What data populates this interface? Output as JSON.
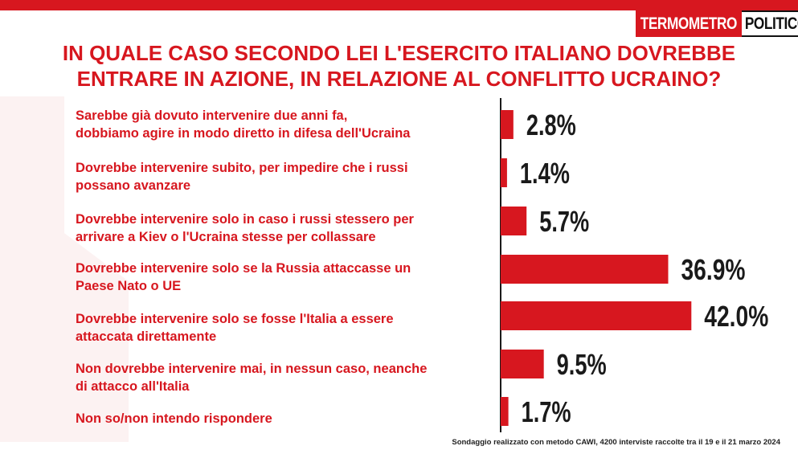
{
  "logo": {
    "part1": "TERMOMETRO",
    "part2": "POLITICO"
  },
  "title_line1": "IN QUALE CASO SECONDO LEI L'ESERCITO ITALIANO DOVREBBE",
  "title_line2": "ENTRARE IN AZIONE, IN RELAZIONE AL CONFLITTO UCRAINO?",
  "labels": [
    [
      "Sarebbe già  dovuto intervenire due anni fa,",
      "dobbiamo agire in modo diretto in difesa dell'Ucraina"
    ],
    [
      "Dovrebbe intervenire subito, per impedire che i russi",
      "possano avanzare"
    ],
    [
      "Dovrebbe intervenire solo in caso i russi stessero per",
      "arrivare a Kiev o l'Ucraina stesse per collassare"
    ],
    [
      "Dovrebbe intervenire solo se la Russia attaccasse un",
      "Paese Nato o UE"
    ],
    [
      "Dovrebbe intervenire solo se fosse l'Italia a essere",
      "attaccata direttamente"
    ],
    [
      "Non dovrebbe intervenire mai, in nessun caso, neanche",
      "di attacco all'Italia"
    ],
    [
      "Non so/non intendo rispondere"
    ]
  ],
  "footnote": "Sondaggio realizzato con metodo CAWI, 4200 interviste raccolte tra il 19 e il 21 marzo 2024",
  "colors": {
    "accent": "#d7171f",
    "text": "#1a1a1a"
  },
  "chart_data": {
    "type": "bar",
    "orientation": "horizontal",
    "categories": [
      "Sarebbe già  dovuto intervenire due anni fa, dobbiamo agire in modo diretto in difesa dell'Ucraina",
      "Dovrebbe intervenire subito, per impedire che i russi possano avanzare",
      "Dovrebbe intervenire solo in caso i russi stessero per arrivare a Kiev o l'Ucraina stesse per collassare",
      "Dovrebbe intervenire solo se la Russia attaccasse un Paese Nato o UE",
      "Dovrebbe intervenire solo se fosse l'Italia a essere attaccata direttamente",
      "Non dovrebbe intervenire mai, in nessun caso, neanche di attacco all'Italia",
      "Non so/non intendo rispondere"
    ],
    "values": [
      2.8,
      1.4,
      5.7,
      36.9,
      42.0,
      9.5,
      1.7
    ],
    "value_labels": [
      "2.8%",
      "1.4%",
      "5.7%",
      "36.9%",
      "42.0%",
      "9.5%",
      "1.7%"
    ],
    "title": "IN QUALE CASO SECONDO LEI L'ESERCITO ITALIANO DOVREBBE ENTRARE IN AZIONE, IN RELAZIONE AL CONFLITTO UCRAINO?",
    "unit": "%",
    "grid": false,
    "legend": "none"
  }
}
